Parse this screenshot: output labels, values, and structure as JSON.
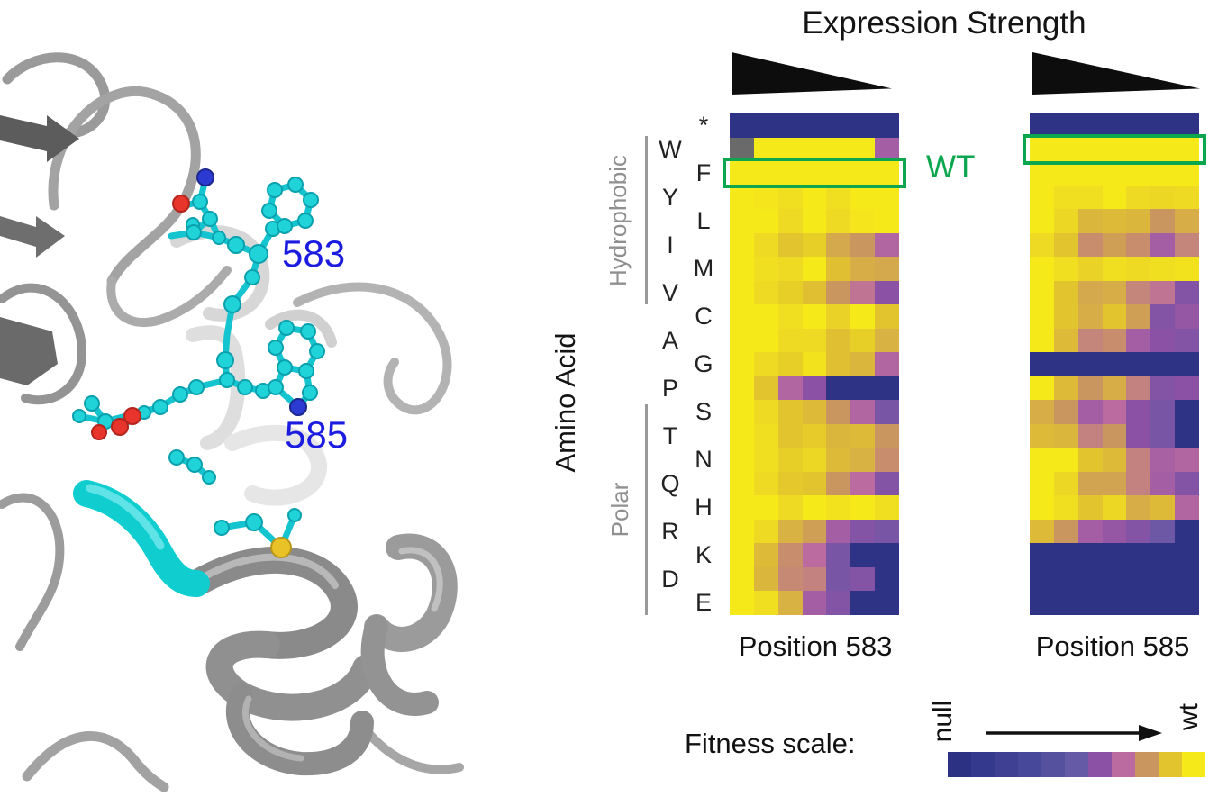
{
  "structure": {
    "labels": [
      "583",
      "585"
    ],
    "label_color": "#1c1ce0",
    "description": "protein ribbon structure with residues 583 and 585 shown as cyan ball-and-stick"
  },
  "wt_label": "WT",
  "accent": {
    "wt_green": "#0ca64f",
    "residue_label_blue": "#1c1ce0"
  },
  "chart_data": {
    "type": "heatmap",
    "title": "Expression Strength",
    "xlabel": "Expression Strength (decreasing, black wedge)",
    "ylabel": "Amino Acid",
    "columns": 7,
    "value_range": [
      0,
      1
    ],
    "row_labels": [
      "*",
      "W",
      "F",
      "Y",
      "L",
      "I",
      "M",
      "V",
      "C",
      "A",
      "G",
      "P",
      "S",
      "T",
      "N",
      "Q",
      "H",
      "R",
      "K",
      "D",
      "E"
    ],
    "row_groups": [
      {
        "label": "Hydrophobic",
        "rows": [
          "W",
          "F",
          "Y",
          "L",
          "I",
          "M",
          "V"
        ]
      },
      {
        "label": "Polar",
        "rows": [
          "S",
          "T",
          "N",
          "Q",
          "H",
          "R",
          "K",
          "D",
          "E"
        ]
      }
    ],
    "scale": {
      "label": "Fitness scale:",
      "min_label": "null",
      "max_label": "wt",
      "colors": [
        "#2d3183",
        "#34398e",
        "#3f4094",
        "#474899",
        "#55519f",
        "#655aa5",
        "#8b51a5",
        "#bc6ba0",
        "#ca9660",
        "#e2c42e",
        "#f6e91a"
      ]
    },
    "missing_color": "#6a6a6a",
    "heatmaps": [
      {
        "name": "Position 583",
        "wt_row": "F",
        "grid": [
          [
            0.03,
            0.03,
            0.03,
            0.03,
            0.03,
            0.03,
            0.03
          ],
          [
            -1,
            1,
            1,
            1,
            1,
            1,
            0.65
          ],
          [
            1,
            1,
            1,
            1,
            1,
            1,
            1
          ],
          [
            1,
            0.99,
            0.97,
            1,
            0.97,
            1,
            1
          ],
          [
            1,
            1,
            0.96,
            1,
            0.96,
            0.99,
            1
          ],
          [
            1,
            0.96,
            0.9,
            0.93,
            0.84,
            0.8,
            0.68
          ],
          [
            1,
            0.97,
            0.96,
            1,
            0.89,
            0.85,
            0.84
          ],
          [
            1,
            0.96,
            0.93,
            0.89,
            0.8,
            0.72,
            0.6
          ],
          [
            1,
            1,
            0.97,
            1,
            0.94,
            1,
            0.9
          ],
          [
            1,
            1,
            0.96,
            0.96,
            0.89,
            0.93,
            0.86
          ],
          [
            1,
            0.96,
            0.93,
            0.98,
            0.89,
            0.87,
            0.68
          ],
          [
            1,
            0.9,
            0.68,
            0.6,
            0.03,
            0.03,
            0.03
          ],
          [
            1,
            0.96,
            0.9,
            0.88,
            0.8,
            0.68,
            0.55
          ],
          [
            1,
            0.97,
            0.9,
            0.92,
            0.87,
            0.88,
            0.8
          ],
          [
            1,
            0.97,
            0.93,
            0.95,
            0.88,
            0.86,
            0.78
          ],
          [
            1,
            0.96,
            0.91,
            0.9,
            0.8,
            0.7,
            0.58
          ],
          [
            1,
            1,
            0.96,
            1,
            0.98,
            1,
            0.97
          ],
          [
            1,
            0.96,
            0.86,
            0.82,
            0.65,
            0.58,
            0.55
          ],
          [
            1,
            0.88,
            0.78,
            0.7,
            0.55,
            0.03,
            0.03
          ],
          [
            1,
            0.87,
            0.77,
            0.75,
            0.55,
            0.58,
            0.03
          ],
          [
            1,
            0.97,
            0.86,
            0.65,
            0.58,
            0.03,
            0.03
          ]
        ]
      },
      {
        "name": "Position 585",
        "wt_row": "W",
        "grid": [
          [
            0.03,
            0.03,
            0.03,
            0.03,
            0.03,
            0.03,
            0.03
          ],
          [
            1,
            1,
            1,
            1,
            1,
            1,
            1
          ],
          [
            1,
            1,
            1,
            1,
            1,
            1,
            1
          ],
          [
            1,
            0.97,
            0.97,
            1,
            0.96,
            0.95,
            0.96
          ],
          [
            1,
            0.95,
            0.87,
            0.88,
            0.87,
            0.8,
            0.85
          ],
          [
            0.96,
            0.9,
            0.78,
            0.82,
            0.78,
            0.65,
            0.76
          ],
          [
            1,
            0.97,
            0.94,
            0.97,
            0.96,
            0.97,
            0.98
          ],
          [
            1,
            0.9,
            0.84,
            0.85,
            0.76,
            0.72,
            0.58
          ],
          [
            1,
            0.9,
            0.85,
            0.9,
            0.82,
            0.58,
            0.62
          ],
          [
            1,
            0.88,
            0.76,
            0.78,
            0.65,
            0.6,
            0.58
          ],
          [
            0.03,
            0.03,
            0.03,
            0.03,
            0.03,
            0.03,
            0.03
          ],
          [
            1,
            0.88,
            0.8,
            0.85,
            0.75,
            0.58,
            0.6
          ],
          [
            0.85,
            0.8,
            0.65,
            0.7,
            0.6,
            0.55,
            0.03
          ],
          [
            0.88,
            0.87,
            0.75,
            0.8,
            0.6,
            0.55,
            0.03
          ],
          [
            1,
            1,
            0.9,
            0.88,
            0.75,
            0.66,
            0.68
          ],
          [
            1,
            0.95,
            0.83,
            0.83,
            0.75,
            0.65,
            0.58
          ],
          [
            1,
            0.97,
            0.9,
            0.95,
            0.85,
            0.88,
            0.68
          ],
          [
            0.88,
            0.8,
            0.65,
            0.62,
            0.58,
            0.52,
            0.03
          ],
          [
            0.03,
            0.03,
            0.03,
            0.03,
            0.03,
            0.03,
            0.03
          ],
          [
            0.03,
            0.03,
            0.03,
            0.03,
            0.03,
            0.03,
            0.03
          ],
          [
            0.03,
            0.03,
            0.03,
            0.03,
            0.03,
            0.03,
            0.03
          ]
        ]
      }
    ]
  }
}
